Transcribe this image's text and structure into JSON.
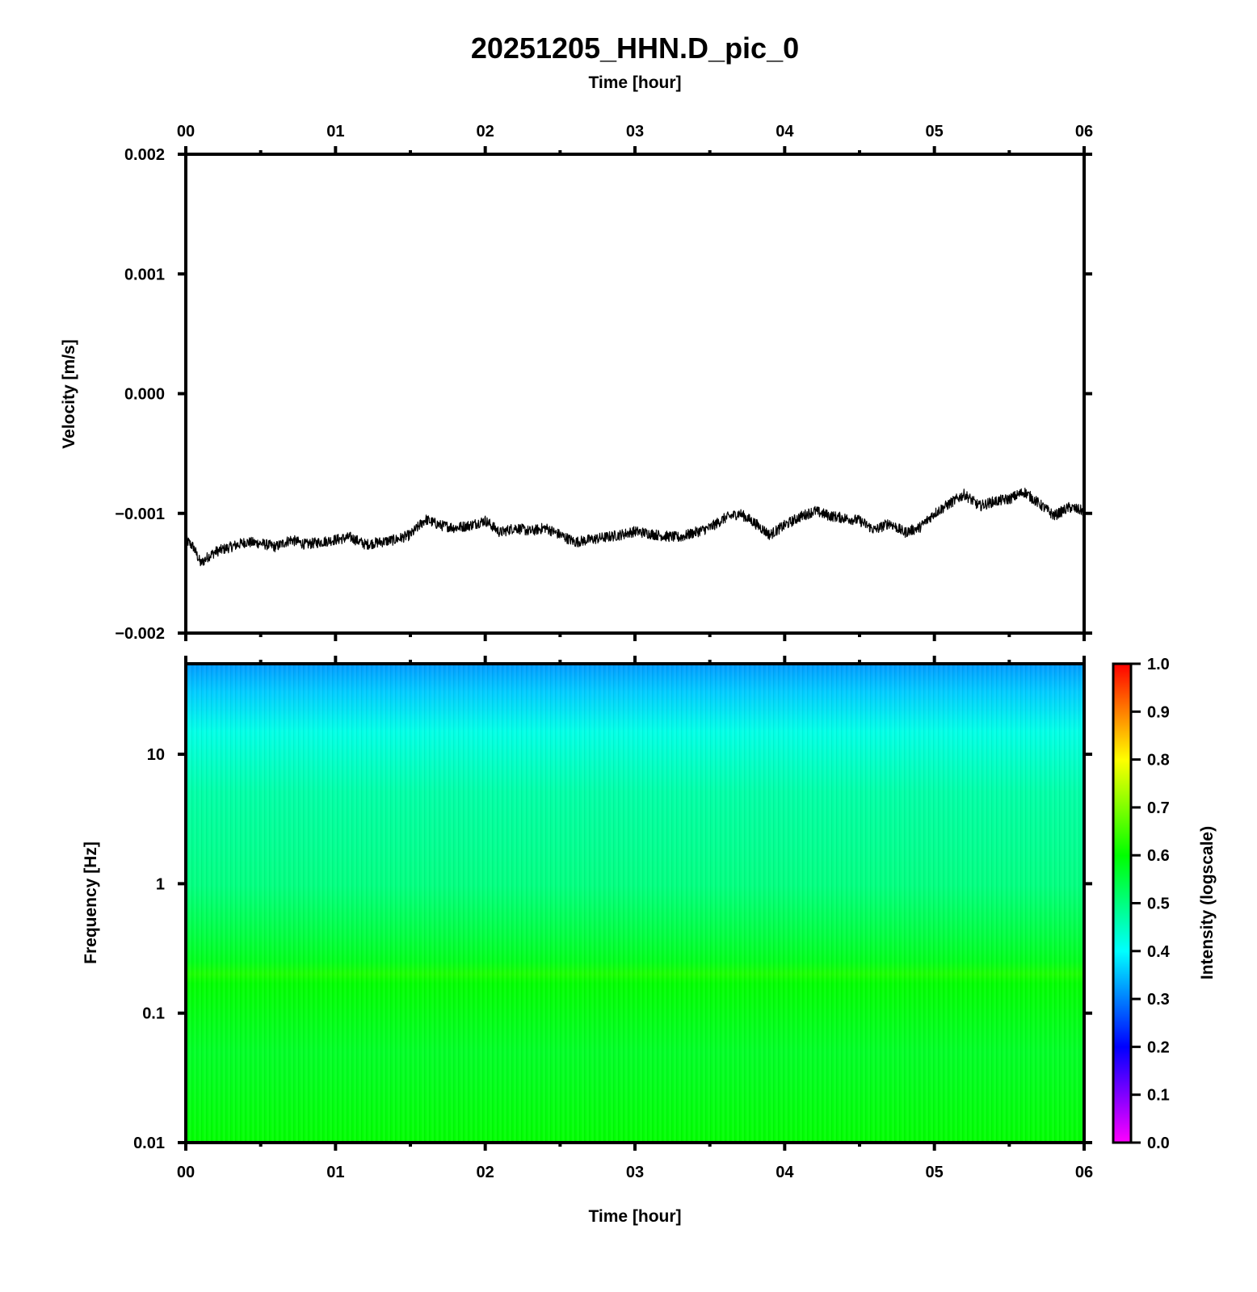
{
  "chart_data": [
    {
      "type": "line",
      "title": "20251205_HHN.D_pic_0",
      "xlabel": "Time [hour]",
      "ylabel": "Velocity [m/s]",
      "x_ticks": [
        "00",
        "01",
        "02",
        "03",
        "04",
        "05",
        "06"
      ],
      "y_ticks": [
        "0.002",
        "0.001",
        "0.000",
        "−0.001",
        "−0.002"
      ],
      "xlim": [
        0,
        6
      ],
      "ylim": [
        -0.002,
        0.002
      ],
      "x_axis_position": "top",
      "series": [
        {
          "color": "#000000",
          "x": [
            0.0,
            0.05,
            0.1,
            0.15,
            0.2,
            0.3,
            0.4,
            0.5,
            0.6,
            0.7,
            0.8,
            0.9,
            1.0,
            1.1,
            1.2,
            1.3,
            1.4,
            1.5,
            1.6,
            1.7,
            1.8,
            1.9,
            2.0,
            2.1,
            2.2,
            2.3,
            2.4,
            2.5,
            2.6,
            2.7,
            2.8,
            2.9,
            3.0,
            3.1,
            3.2,
            3.3,
            3.4,
            3.5,
            3.6,
            3.7,
            3.8,
            3.9,
            4.0,
            4.1,
            4.2,
            4.3,
            4.4,
            4.5,
            4.6,
            4.7,
            4.8,
            4.9,
            5.0,
            5.1,
            5.2,
            5.3,
            5.4,
            5.5,
            5.6,
            5.7,
            5.8,
            5.9,
            6.0
          ],
          "y": [
            -0.00122,
            -0.00128,
            -0.00142,
            -0.00136,
            -0.00132,
            -0.00128,
            -0.00124,
            -0.00125,
            -0.00128,
            -0.00122,
            -0.00126,
            -0.00124,
            -0.00122,
            -0.0012,
            -0.00126,
            -0.00124,
            -0.00122,
            -0.00118,
            -0.00105,
            -0.0011,
            -0.00112,
            -0.0011,
            -0.00106,
            -0.00116,
            -0.00112,
            -0.00115,
            -0.00112,
            -0.00118,
            -0.00124,
            -0.00122,
            -0.0012,
            -0.00118,
            -0.00115,
            -0.00117,
            -0.00119,
            -0.0012,
            -0.00116,
            -0.00112,
            -0.00104,
            -0.001,
            -0.00108,
            -0.00118,
            -0.0011,
            -0.00103,
            -0.00098,
            -0.00102,
            -0.00104,
            -0.00106,
            -0.00114,
            -0.00108,
            -0.00116,
            -0.00112,
            -0.001,
            -0.00092,
            -0.00084,
            -0.00094,
            -0.0009,
            -0.00088,
            -0.00082,
            -0.00092,
            -0.00102,
            -0.00095,
            -0.00098
          ]
        }
      ]
    },
    {
      "type": "heatmap",
      "xlabel": "Time [hour]",
      "ylabel": "Frequency [Hz]",
      "x_ticks": [
        "00",
        "01",
        "02",
        "03",
        "04",
        "05",
        "06"
      ],
      "y_ticks": [
        "10",
        "1",
        "0.1",
        "0.01"
      ],
      "xlim": [
        0,
        6
      ],
      "ylim": [
        0.01,
        50
      ],
      "yscale": "log",
      "colorbar": {
        "label": "Intensity (logscale)",
        "range": [
          0.0,
          1.0
        ],
        "ticks": [
          "1.0",
          "0.9",
          "0.8",
          "0.7",
          "0.6",
          "0.5",
          "0.4",
          "0.3",
          "0.2",
          "0.1",
          "0.0"
        ],
        "colors": [
          "#ff00ff",
          "#0000ff",
          "#00ffff",
          "#00ff00",
          "#ffff00",
          "#ff0000"
        ]
      },
      "intensity_profile": {
        "frequency": [
          0.01,
          0.05,
          0.17,
          0.2,
          0.25,
          0.4,
          1.0,
          5.0,
          15.0,
          30.0,
          50.0
        ],
        "value": [
          0.6,
          0.57,
          0.6,
          0.62,
          0.58,
          0.55,
          0.5,
          0.47,
          0.42,
          0.36,
          0.32
        ]
      }
    }
  ]
}
